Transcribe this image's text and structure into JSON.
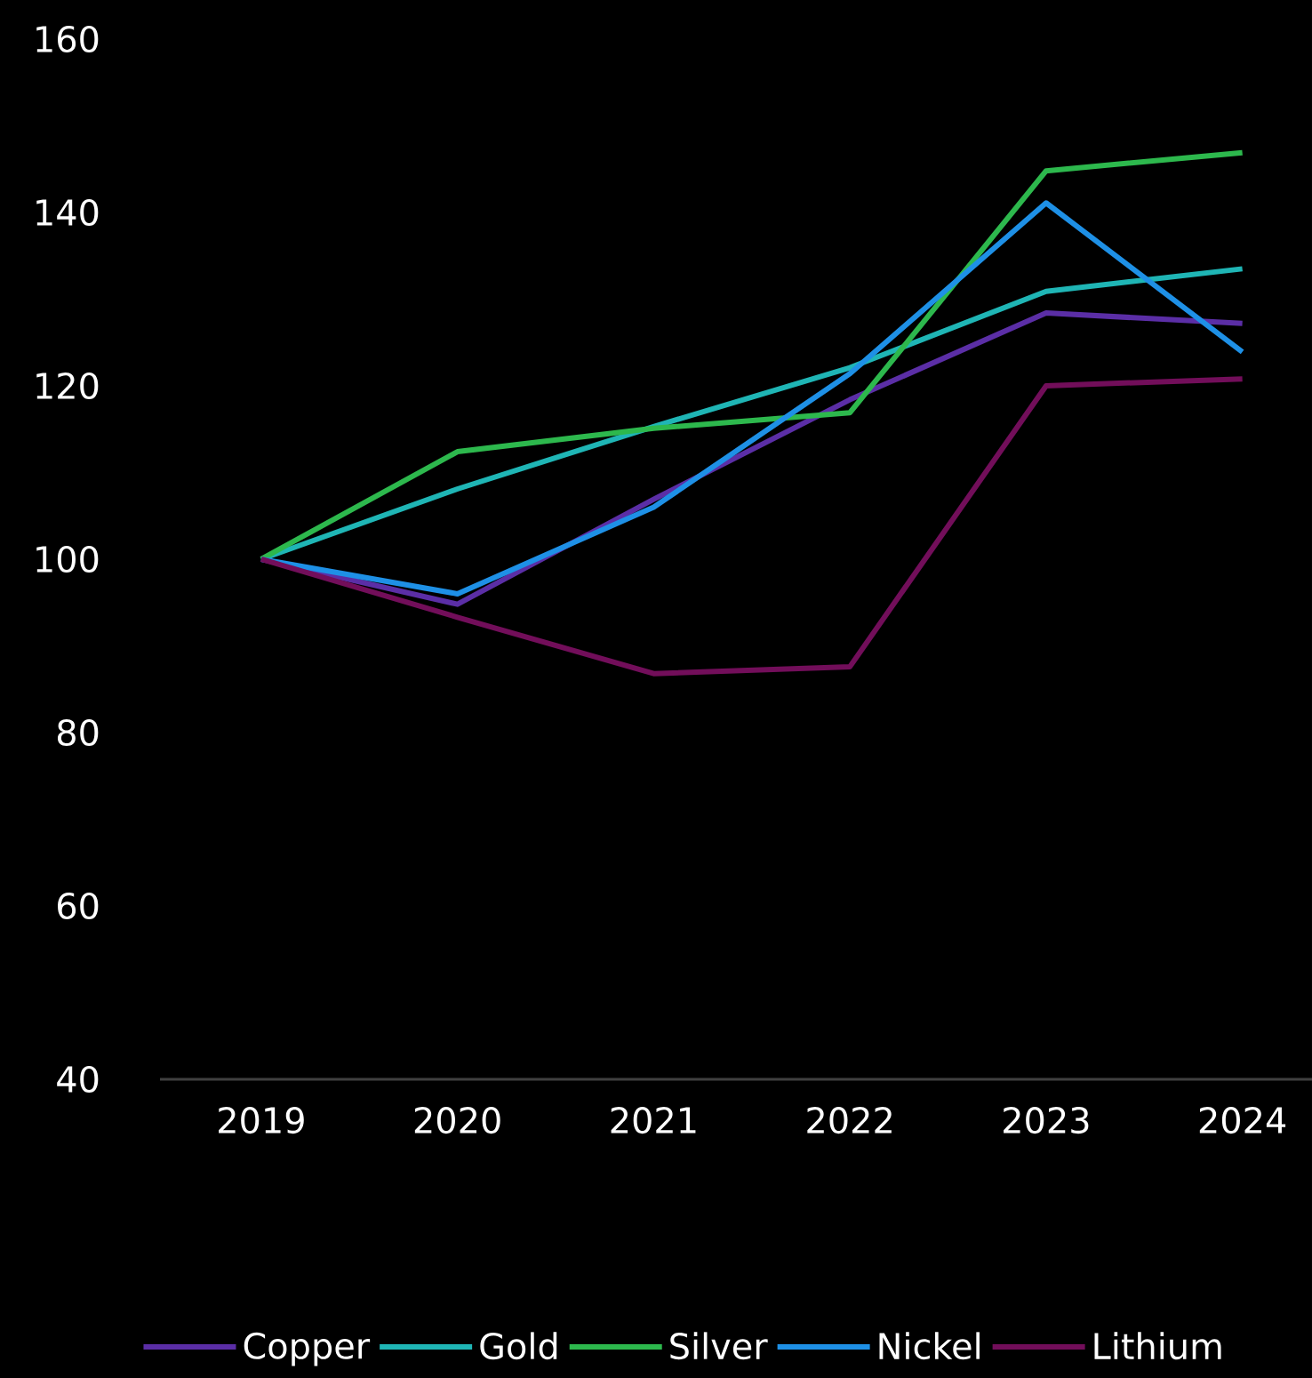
{
  "chart_data": {
    "type": "line",
    "categories": [
      "2019",
      "2020",
      "2021",
      "2022",
      "2023",
      "2024"
    ],
    "series": [
      {
        "name": "Copper",
        "color": "#5b2ea6",
        "values": [
          100,
          94.8,
          106.9,
          118.4,
          128.4,
          127.2
        ]
      },
      {
        "name": "Gold",
        "color": "#1fb5b5",
        "values": [
          100,
          108.1,
          115.3,
          122.1,
          130.9,
          133.5
        ]
      },
      {
        "name": "Silver",
        "color": "#2db84d",
        "values": [
          100,
          112.4,
          115.1,
          116.9,
          144.8,
          146.9
        ]
      },
      {
        "name": "Nickel",
        "color": "#1e90e6",
        "values": [
          100,
          96,
          106,
          121.4,
          141.1,
          123.9
        ]
      },
      {
        "name": "Lithium",
        "color": "#720e5a",
        "values": [
          100,
          93.3,
          86.8,
          87.6,
          120,
          120.8
        ]
      }
    ],
    "ylim": [
      40,
      160
    ],
    "yticks": [
      40,
      60,
      80,
      100,
      120,
      140,
      160
    ],
    "grid": false,
    "legend": "bottom",
    "marker": "none",
    "line_style": "solid"
  }
}
